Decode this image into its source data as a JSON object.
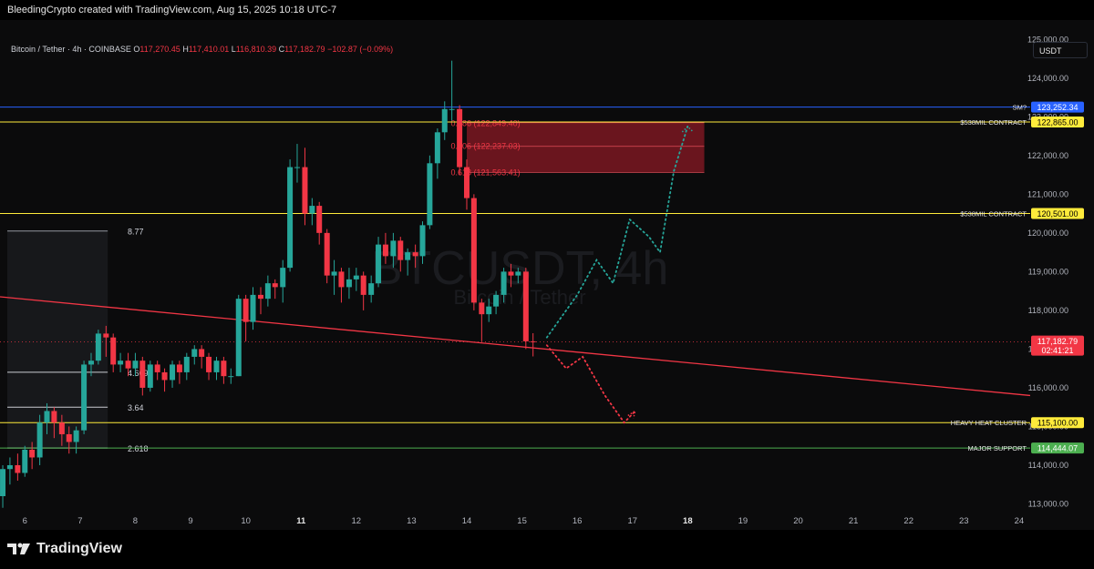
{
  "header": {
    "attribution": "BleedingCrypto created with TradingView.com, Aug 15, 2025 10:18 UTC-7"
  },
  "ohlc": {
    "symbol": "Bitcoin / Tether · 4h · COINBASE",
    "o_label": "O",
    "o": "117,270.45",
    "h_label": "H",
    "h": "117,410.01",
    "l_label": "L",
    "l": "116,810.39",
    "c_label": "C",
    "c": "117,182.79",
    "change": "−102.87 (−0.09%)"
  },
  "currency": "USDT",
  "watermark": {
    "symbol": "BTCUSDT, 4h",
    "name": "Bitcoin / Tether"
  },
  "footer": {
    "logo_text": "TradingView"
  },
  "colors": {
    "up": "#26a69a",
    "down": "#f23645",
    "yellow": "#ffeb3b",
    "blue": "#2962ff",
    "green": "#4caf50",
    "red_line": "#f23645",
    "zone": "#8b1a24"
  },
  "chart_data": {
    "type": "candlestick",
    "timeframe": "4h",
    "y_axis": {
      "ylim": [
        112800,
        125500
      ],
      "ticks": [
        113000,
        114000,
        115000,
        116000,
        117000,
        118000,
        119000,
        120000,
        121000,
        122000,
        123000,
        124000,
        125000
      ],
      "tick_labels": [
        "113,000.00",
        "114,000.00",
        "115,000.00",
        "116,000.00",
        "117,000.00",
        "118,000.00",
        "119,000.00",
        "120,000.00",
        "121,000.00",
        "122,000.00",
        "123,000.00",
        "124,000.00",
        "125,000.00"
      ]
    },
    "x_axis": {
      "range_days": [
        5.55,
        24.2
      ],
      "ticks": [
        6,
        7,
        8,
        9,
        10,
        11,
        12,
        13,
        14,
        15,
        16,
        17,
        18,
        19,
        20,
        21,
        22,
        23,
        24
      ],
      "tick_labels": [
        "6",
        "7",
        "8",
        "9",
        "10",
        "11",
        "12",
        "13",
        "14",
        "15",
        "16",
        "17",
        "18",
        "19",
        "20",
        "21",
        "22",
        "23",
        "24"
      ],
      "bold_ticks": [
        "11",
        "18"
      ]
    },
    "candles": [
      [
        5.6,
        113200,
        113900,
        112900,
        114000
      ],
      [
        5.73,
        113900,
        114000,
        113500,
        114200
      ],
      [
        5.87,
        114000,
        113800,
        113600,
        114300
      ],
      [
        6.0,
        113800,
        114400,
        113700,
        114500
      ],
      [
        6.13,
        114400,
        114200,
        113900,
        114600
      ],
      [
        6.27,
        114200,
        115100,
        114000,
        115300
      ],
      [
        6.4,
        115100,
        115400,
        114800,
        115600
      ],
      [
        6.53,
        115400,
        115100,
        114700,
        115500
      ],
      [
        6.67,
        115100,
        114800,
        114500,
        115300
      ],
      [
        6.8,
        114800,
        114600,
        114300,
        115000
      ],
      [
        6.93,
        114600,
        114900,
        114300,
        115000
      ],
      [
        7.07,
        114900,
        116600,
        114800,
        116700
      ],
      [
        7.2,
        116600,
        116700,
        116300,
        116900
      ],
      [
        7.33,
        116700,
        117400,
        116600,
        117500
      ],
      [
        7.47,
        117400,
        117300,
        116800,
        117600
      ],
      [
        7.6,
        117300,
        116600,
        116400,
        117400
      ],
      [
        7.73,
        116600,
        116700,
        116400,
        116900
      ],
      [
        7.87,
        116700,
        116500,
        116300,
        116900
      ],
      [
        8.0,
        116500,
        116700,
        116300,
        116900
      ],
      [
        8.13,
        116700,
        116000,
        115800,
        116800
      ],
      [
        8.27,
        116000,
        116600,
        115900,
        116700
      ],
      [
        8.4,
        116600,
        116400,
        116200,
        116700
      ],
      [
        8.53,
        116400,
        116200,
        115900,
        116500
      ],
      [
        8.67,
        116200,
        116600,
        116000,
        116700
      ],
      [
        8.8,
        116600,
        116400,
        116100,
        116700
      ],
      [
        8.93,
        116400,
        116800,
        116200,
        116900
      ],
      [
        9.07,
        116800,
        117000,
        116600,
        117100
      ],
      [
        9.2,
        117000,
        116800,
        116500,
        117100
      ],
      [
        9.33,
        116800,
        116400,
        116200,
        116900
      ],
      [
        9.47,
        116400,
        116700,
        116200,
        116800
      ],
      [
        9.6,
        116700,
        116300,
        116100,
        116800
      ],
      [
        9.73,
        116300,
        116300,
        116100,
        116500
      ],
      [
        9.87,
        116300,
        118300,
        116300,
        118400
      ],
      [
        10.0,
        118300,
        117700,
        117200,
        118400
      ],
      [
        10.13,
        117700,
        118400,
        117500,
        118600
      ],
      [
        10.27,
        118400,
        118300,
        117900,
        118600
      ],
      [
        10.4,
        118300,
        118700,
        118100,
        118900
      ],
      [
        10.53,
        118700,
        118600,
        118300,
        118800
      ],
      [
        10.67,
        118600,
        119100,
        118200,
        119300
      ],
      [
        10.8,
        119100,
        121700,
        119000,
        121900
      ],
      [
        10.93,
        121700,
        121700,
        121300,
        122300
      ],
      [
        11.07,
        121700,
        120500,
        120200,
        122200
      ],
      [
        11.2,
        120500,
        120700,
        120200,
        120900
      ],
      [
        11.33,
        120700,
        120000,
        119700,
        120800
      ],
      [
        11.47,
        120000,
        118900,
        118700,
        120100
      ],
      [
        11.6,
        118900,
        119000,
        118400,
        119300
      ],
      [
        11.73,
        119000,
        118600,
        118200,
        119100
      ],
      [
        11.87,
        118600,
        118800,
        118300,
        119100
      ],
      [
        12.0,
        118800,
        118900,
        118500,
        119100
      ],
      [
        12.13,
        118900,
        118400,
        118000,
        119000
      ],
      [
        12.27,
        118400,
        118700,
        118200,
        118900
      ],
      [
        12.4,
        118700,
        119700,
        118600,
        119900
      ],
      [
        12.53,
        119700,
        119400,
        119200,
        120000
      ],
      [
        12.67,
        119400,
        119800,
        119100,
        120000
      ],
      [
        12.8,
        119800,
        119300,
        119000,
        119900
      ],
      [
        12.93,
        119300,
        119500,
        118900,
        119600
      ],
      [
        13.07,
        119500,
        119400,
        119100,
        119700
      ],
      [
        13.2,
        119400,
        120200,
        119200,
        120300
      ],
      [
        13.33,
        120200,
        121800,
        120100,
        122000
      ],
      [
        13.47,
        121800,
        122600,
        121400,
        122700
      ],
      [
        13.6,
        122600,
        123200,
        122400,
        123400
      ],
      [
        13.73,
        123200,
        123200,
        122900,
        124450
      ],
      [
        13.87,
        123200,
        121700,
        121500,
        123300
      ],
      [
        14.0,
        121700,
        120900,
        120600,
        121900
      ],
      [
        14.13,
        120900,
        118200,
        118000,
        121000
      ],
      [
        14.27,
        118200,
        117900,
        117200,
        118300
      ],
      [
        14.4,
        117900,
        118100,
        117700,
        118300
      ],
      [
        14.53,
        118100,
        118400,
        117900,
        118500
      ],
      [
        14.67,
        118400,
        119000,
        118200,
        119100
      ],
      [
        14.8,
        119000,
        118900,
        118600,
        119200
      ],
      [
        14.93,
        118900,
        119000,
        118700,
        119100
      ],
      [
        15.07,
        119000,
        117200,
        117000,
        119100
      ],
      [
        15.2,
        117200,
        117180,
        116810,
        117410
      ]
    ],
    "horizontal_levels": [
      {
        "price": 123252.34,
        "label": "SM?",
        "badge": "123,252.34",
        "color": "#2962ff",
        "badge_text_color": "#ffffff"
      },
      {
        "price": 122865.0,
        "label": "$538MIL  CONTRACT",
        "badge": "122,865.00",
        "color": "#ffeb3b",
        "badge_text_color": "#000000"
      },
      {
        "price": 120501.0,
        "label": "$538MIL CONTRACT",
        "badge": "120,501.00",
        "color": "#ffeb3b",
        "badge_text_color": "#000000"
      },
      {
        "price": 115100.0,
        "label": "HEAVY HEAT CLUSTER",
        "badge": "115,100.00",
        "color": "#ffeb3b",
        "badge_text_color": "#000000"
      },
      {
        "price": 114444.07,
        "label": "MAJOR SUPPORT",
        "badge": "114,444.07",
        "color": "#4caf50",
        "badge_text_color": "#ffffff"
      }
    ],
    "current_price": {
      "badge": "117,182.79",
      "countdown": "02:41:21",
      "price": 117182.79
    },
    "fib_zone": {
      "x_start": 14.0,
      "x_end": 18.3,
      "top": 122849.4,
      "bottom": 121563.41,
      "levels": [
        {
          "price": 122849.4,
          "label": "0.786 (122,849.40)"
        },
        {
          "price": 122237.03,
          "label": "0.706 (122,237.03)"
        },
        {
          "price": 121563.41,
          "label": "0.618 (121,563.41)"
        }
      ]
    },
    "trendline": {
      "x1": 5.55,
      "y1": 118350,
      "x2": 24.2,
      "y2": 115800
    },
    "fib_extension": {
      "x_end": 7.5,
      "levels": [
        {
          "label": "8.77",
          "price": 120050
        },
        {
          "label": "4.669",
          "price": 116400
        },
        {
          "label": "3.64",
          "price": 115500
        },
        {
          "label": "2.618",
          "price": 114444
        }
      ]
    },
    "projection_bull": [
      [
        15.45,
        117300
      ],
      [
        16.0,
        118400
      ],
      [
        16.35,
        119300
      ],
      [
        16.65,
        118700
      ],
      [
        16.95,
        120350
      ],
      [
        17.3,
        119900
      ],
      [
        17.5,
        119500
      ],
      [
        17.75,
        121600
      ],
      [
        18.0,
        122750
      ]
    ],
    "projection_bear": [
      [
        15.45,
        117100
      ],
      [
        15.8,
        116500
      ],
      [
        16.1,
        116800
      ],
      [
        16.5,
        115800
      ],
      [
        16.85,
        115100
      ],
      [
        17.05,
        115400
      ]
    ]
  }
}
